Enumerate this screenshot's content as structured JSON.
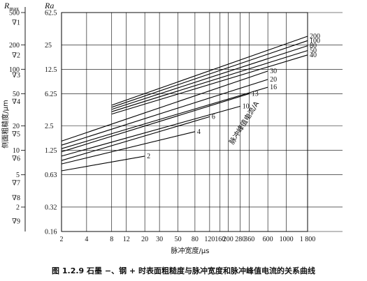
{
  "caption": "图 1.2.9   石墨 −、钢 + 时表面粗糙度与脉冲宽度和脉冲峰值电流的关系曲线",
  "chart_data": {
    "type": "line",
    "xlabel": "脉冲宽度/μs",
    "ylabel": "侧面粗糙度/μm",
    "y_head_left": "R_max",
    "y_head_left_main": "R",
    "y_head_left_sub": "max",
    "y_head_right": "Ra",
    "inner_label": "脉冲峰值电流/A",
    "x_scale": "log",
    "y_scale": "log",
    "xlim": [
      2,
      1800
    ],
    "ylim_rmax": [
      1,
      500
    ],
    "x_ticks": [
      2,
      4,
      8,
      12,
      20,
      30,
      50,
      80,
      120,
      160,
      200,
      280,
      360,
      600,
      1000,
      1800
    ],
    "x_tick_labels": [
      "2",
      "4",
      "8",
      "12",
      "20",
      "30",
      "50",
      "80",
      "120",
      "160",
      "200",
      "280",
      "360",
      "600",
      "1000",
      "1 800"
    ],
    "rmax_ticks": [
      {
        "value": 500,
        "label": "500"
      },
      {
        "value": 200,
        "label": "200"
      },
      {
        "value": 100,
        "label": "100"
      },
      {
        "value": 50,
        "label": "50"
      },
      {
        "value": 20,
        "label": "20"
      },
      {
        "value": 10,
        "label": "10"
      },
      {
        "value": 5,
        "label": "5"
      },
      {
        "value": 2,
        "label": "2"
      }
    ],
    "ra_ticks": [
      {
        "value": 500,
        "label": "62.5"
      },
      {
        "value": 200,
        "label": "25"
      },
      {
        "value": 100,
        "label": "12.5"
      },
      {
        "value": 50,
        "label": "6.25"
      },
      {
        "value": 20,
        "label": "2.5"
      },
      {
        "value": 10,
        "label": "1.25"
      },
      {
        "value": 5,
        "label": "0.63"
      },
      {
        "value": 2,
        "label": "0.32"
      },
      {
        "value": 1,
        "label": "0.16"
      }
    ],
    "grades": [
      {
        "value": 380,
        "label": "∇1"
      },
      {
        "value": 150,
        "label": "∇2"
      },
      {
        "value": 85,
        "label": "∇3"
      },
      {
        "value": 40,
        "label": "∇4"
      },
      {
        "value": 16,
        "label": "∇5"
      },
      {
        "value": 8,
        "label": "∇6"
      },
      {
        "value": 4,
        "label": "∇7"
      },
      {
        "value": 2.6,
        "label": "∇8"
      },
      {
        "value": 1.35,
        "label": "∇9"
      }
    ],
    "series": [
      {
        "name": "2",
        "x": [
          2,
          20
        ],
        "y": [
          5.6,
          8.5
        ]
      },
      {
        "name": "4",
        "x": [
          2,
          80
        ],
        "y": [
          6.8,
          17
        ]
      },
      {
        "name": "6",
        "x": [
          2,
          120
        ],
        "y": [
          7.5,
          26
        ]
      },
      {
        "name": "10",
        "x": [
          2,
          280
        ],
        "y": [
          8.5,
          35
        ]
      },
      {
        "name": "13",
        "x": [
          2,
          360
        ],
        "y": [
          9.6,
          50
        ]
      },
      {
        "name": "16",
        "x": [
          2,
          600
        ],
        "y": [
          10.5,
          60
        ]
      },
      {
        "name": "20",
        "x": [
          2,
          600
        ],
        "y": [
          11.6,
          75
        ]
      },
      {
        "name": "30",
        "x": [
          2,
          600
        ],
        "y": [
          13,
          95
        ]
      },
      {
        "name": "40",
        "x": [
          8,
          1800
        ],
        "y": [
          28,
          150
        ]
      },
      {
        "name": "50",
        "x": [
          8,
          1800
        ],
        "y": [
          30,
          170
        ]
      },
      {
        "name": "80",
        "x": [
          8,
          1800
        ],
        "y": [
          32,
          195
        ]
      },
      {
        "name": "100",
        "x": [
          8,
          1800
        ],
        "y": [
          34,
          225
        ]
      },
      {
        "name": "200",
        "x": [
          8,
          1800
        ],
        "y": [
          36,
          255
        ]
      }
    ]
  }
}
